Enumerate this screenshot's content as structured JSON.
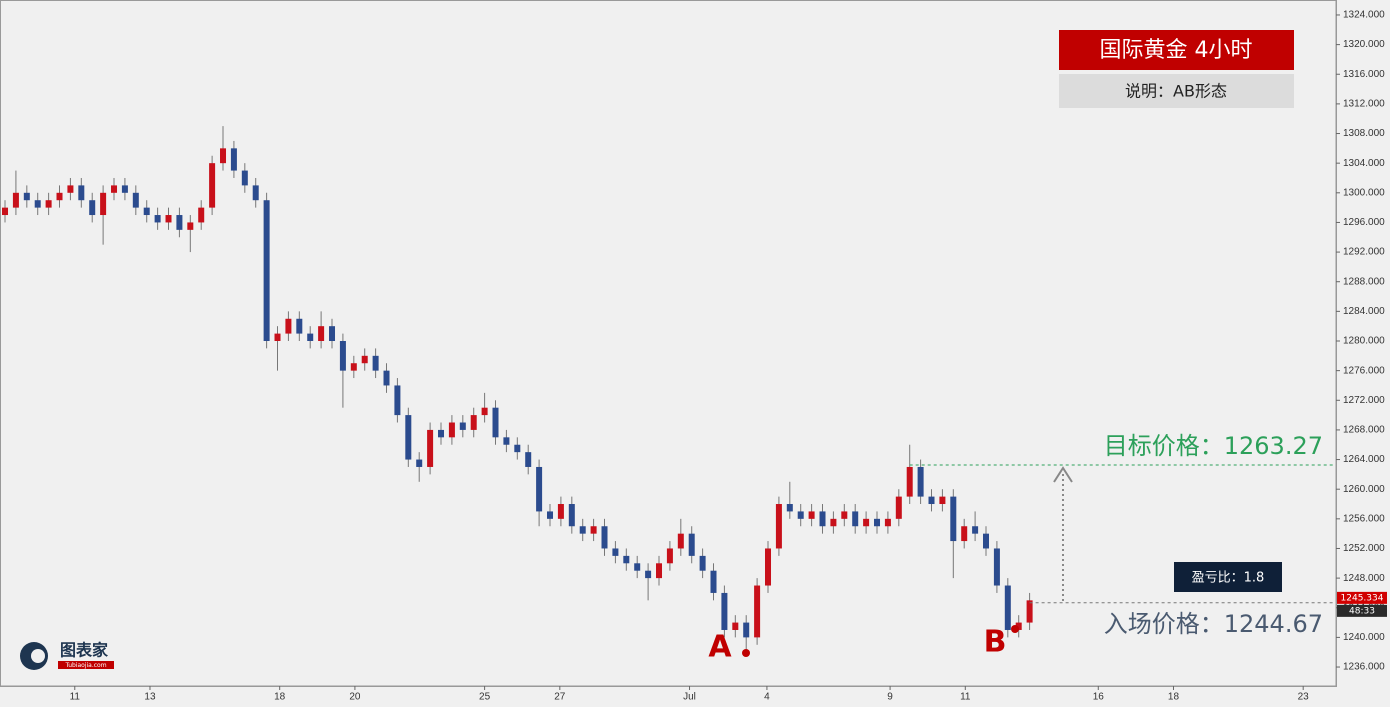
{
  "chart_data": {
    "type": "candlestick",
    "title": "国际黄金  4小时",
    "subtitle": "说明：AB形态",
    "annotations": {
      "ratio": "盈亏比：1.8",
      "point_a": "A",
      "point_b": "B",
      "logo": "图表家",
      "logo_site": "Tubiaojia.com",
      "countdown": "48:33"
    },
    "target": {
      "label": "目标价格：1263.27",
      "value": 1263.27,
      "color": "#2ca05a"
    },
    "entry": {
      "label": "入场价格：1244.67",
      "value": 1244.67,
      "color": "#777777"
    },
    "last_price": {
      "value": 1245.334,
      "label": "1245.334",
      "color": "#d10000"
    },
    "up_color": "#c8101a",
    "down_color": "#2b4b8e",
    "open": [
      1297,
      1298,
      1300,
      1299,
      1298,
      1299,
      1300,
      1301,
      1299,
      1297,
      1300,
      1301,
      1300,
      1298,
      1297,
      1296,
      1297,
      1295,
      1296,
      1298,
      1304,
      1306,
      1303,
      1301,
      1299,
      1280,
      1281,
      1283,
      1281,
      1280,
      1282,
      1280,
      1276,
      1277,
      1278,
      1276,
      1274,
      1270,
      1264,
      1263,
      1268,
      1267,
      1269,
      1268,
      1270,
      1271,
      1267,
      1266,
      1265,
      1263,
      1257,
      1256,
      1258,
      1255,
      1254,
      1255,
      1252,
      1251,
      1250,
      1249,
      1248,
      1250,
      1252,
      1254,
      1251,
      1249,
      1246,
      1241,
      1242,
      1240,
      1247,
      1252,
      1258,
      1257,
      1256,
      1257,
      1255,
      1256,
      1257,
      1255,
      1256,
      1255,
      1256,
      1259,
      1263,
      1259,
      1258,
      1259,
      1253,
      1255,
      1254,
      1252,
      1247,
      1241,
      1242
    ],
    "high": [
      1299,
      1303,
      1301,
      1300,
      1300,
      1301,
      1302,
      1302,
      1300,
      1301,
      1302,
      1302,
      1301,
      1299,
      1298,
      1298,
      1298,
      1297,
      1299,
      1305,
      1309,
      1307,
      1304,
      1302,
      1300,
      1282,
      1284,
      1284,
      1282,
      1284,
      1283,
      1281,
      1278,
      1279,
      1279,
      1277,
      1275,
      1271,
      1265,
      1269,
      1269,
      1270,
      1270,
      1271,
      1273,
      1272,
      1268,
      1267,
      1266,
      1264,
      1258,
      1259,
      1259,
      1256,
      1256,
      1256,
      1253,
      1252,
      1251,
      1250,
      1251,
      1253,
      1256,
      1255,
      1252,
      1250,
      1247,
      1243,
      1243,
      1248,
      1253,
      1259,
      1261,
      1258,
      1258,
      1258,
      1257,
      1258,
      1258,
      1257,
      1257,
      1257,
      1260,
      1266,
      1264,
      1260,
      1260,
      1260,
      1256,
      1257,
      1255,
      1253,
      1248,
      1243,
      1246
    ],
    "low": [
      1296,
      1297,
      1298,
      1297,
      1297,
      1298,
      1299,
      1298,
      1296,
      1293,
      1299,
      1299,
      1297,
      1296,
      1295,
      1295,
      1294,
      1292,
      1295,
      1297,
      1303,
      1302,
      1300,
      1298,
      1279,
      1276,
      1280,
      1280,
      1279,
      1279,
      1279,
      1271,
      1275,
      1276,
      1275,
      1273,
      1269,
      1263,
      1261,
      1262,
      1266,
      1266,
      1267,
      1267,
      1269,
      1266,
      1265,
      1264,
      1262,
      1255,
      1255,
      1255,
      1254,
      1253,
      1253,
      1251,
      1250,
      1249,
      1248,
      1245,
      1247,
      1249,
      1251,
      1250,
      1248,
      1245,
      1240,
      1240,
      1238,
      1239,
      1246,
      1251,
      1256,
      1255,
      1255,
      1254,
      1254,
      1255,
      1254,
      1254,
      1254,
      1254,
      1255,
      1258,
      1258,
      1257,
      1257,
      1248,
      1252,
      1253,
      1251,
      1246,
      1240,
      1240,
      1241
    ],
    "close": [
      1298,
      1300,
      1299,
      1298,
      1299,
      1300,
      1301,
      1299,
      1297,
      1300,
      1301,
      1300,
      1298,
      1297,
      1296,
      1297,
      1295,
      1296,
      1298,
      1304,
      1306,
      1303,
      1301,
      1299,
      1280,
      1281,
      1283,
      1281,
      1280,
      1282,
      1280,
      1276,
      1277,
      1278,
      1276,
      1274,
      1270,
      1264,
      1263,
      1268,
      1267,
      1269,
      1268,
      1270,
      1271,
      1267,
      1266,
      1265,
      1263,
      1257,
      1256,
      1258,
      1255,
      1254,
      1255,
      1252,
      1251,
      1250,
      1249,
      1248,
      1250,
      1252,
      1254,
      1251,
      1249,
      1246,
      1241,
      1242,
      1240,
      1247,
      1252,
      1258,
      1257,
      1256,
      1257,
      1255,
      1256,
      1257,
      1255,
      1256,
      1255,
      1256,
      1259,
      1263,
      1259,
      1258,
      1259,
      1253,
      1255,
      1254,
      1252,
      1247,
      1241,
      1242,
      1245
    ],
    "xlim": [
      -0.46,
      122.11
    ],
    "xticks": [
      {
        "value": 6.4,
        "label": "11"
      },
      {
        "value": 13.3,
        "label": "13"
      },
      {
        "value": 25.2,
        "label": "18"
      },
      {
        "value": 32.1,
        "label": "20"
      },
      {
        "value": 44.0,
        "label": "25"
      },
      {
        "value": 50.9,
        "label": "27"
      },
      {
        "value": 62.8,
        "label": "Jul"
      },
      {
        "value": 69.9,
        "label": "4"
      },
      {
        "value": 81.2,
        "label": "9"
      },
      {
        "value": 88.1,
        "label": "11"
      },
      {
        "value": 100.3,
        "label": "16"
      },
      {
        "value": 107.2,
        "label": "18"
      },
      {
        "value": 119.1,
        "label": "23"
      }
    ],
    "ylim": [
      1233.44,
      1326.02
    ],
    "yticks": [
      {
        "value": 1236,
        "label": "1236.000"
      },
      {
        "value": 1240,
        "label": "1240.000"
      },
      {
        "value": 1244,
        "label": "1244.000"
      },
      {
        "value": 1248,
        "label": "1248.000"
      },
      {
        "value": 1252,
        "label": "1252.000"
      },
      {
        "value": 1256,
        "label": "1256.000"
      },
      {
        "value": 1260,
        "label": "1260.000"
      },
      {
        "value": 1264,
        "label": "1264.000"
      },
      {
        "value": 1268,
        "label": "1268.000"
      },
      {
        "value": 1272,
        "label": "1272.000"
      },
      {
        "value": 1276,
        "label": "1276.000"
      },
      {
        "value": 1280,
        "label": "1280.000"
      },
      {
        "value": 1284,
        "label": "1284.000"
      },
      {
        "value": 1288,
        "label": "1288.000"
      },
      {
        "value": 1292,
        "label": "1292.000"
      },
      {
        "value": 1296,
        "label": "1296.000"
      },
      {
        "value": 1300,
        "label": "1300.000"
      },
      {
        "value": 1304,
        "label": "1304.000"
      },
      {
        "value": 1308,
        "label": "1308.000"
      },
      {
        "value": 1312,
        "label": "1312.000"
      },
      {
        "value": 1316,
        "label": "1316.000"
      },
      {
        "value": 1320,
        "label": "1320.000"
      },
      {
        "value": 1324,
        "label": "1324.000"
      }
    ]
  }
}
